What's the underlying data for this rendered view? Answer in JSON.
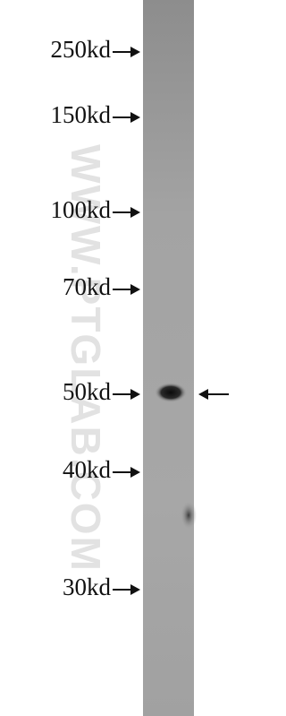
{
  "markers": [
    "250kd",
    "150kd",
    "100kd",
    "70kd",
    "50kd",
    "40kd",
    "30kd"
  ],
  "watermark": "WWW.PTGLAB.COM"
}
